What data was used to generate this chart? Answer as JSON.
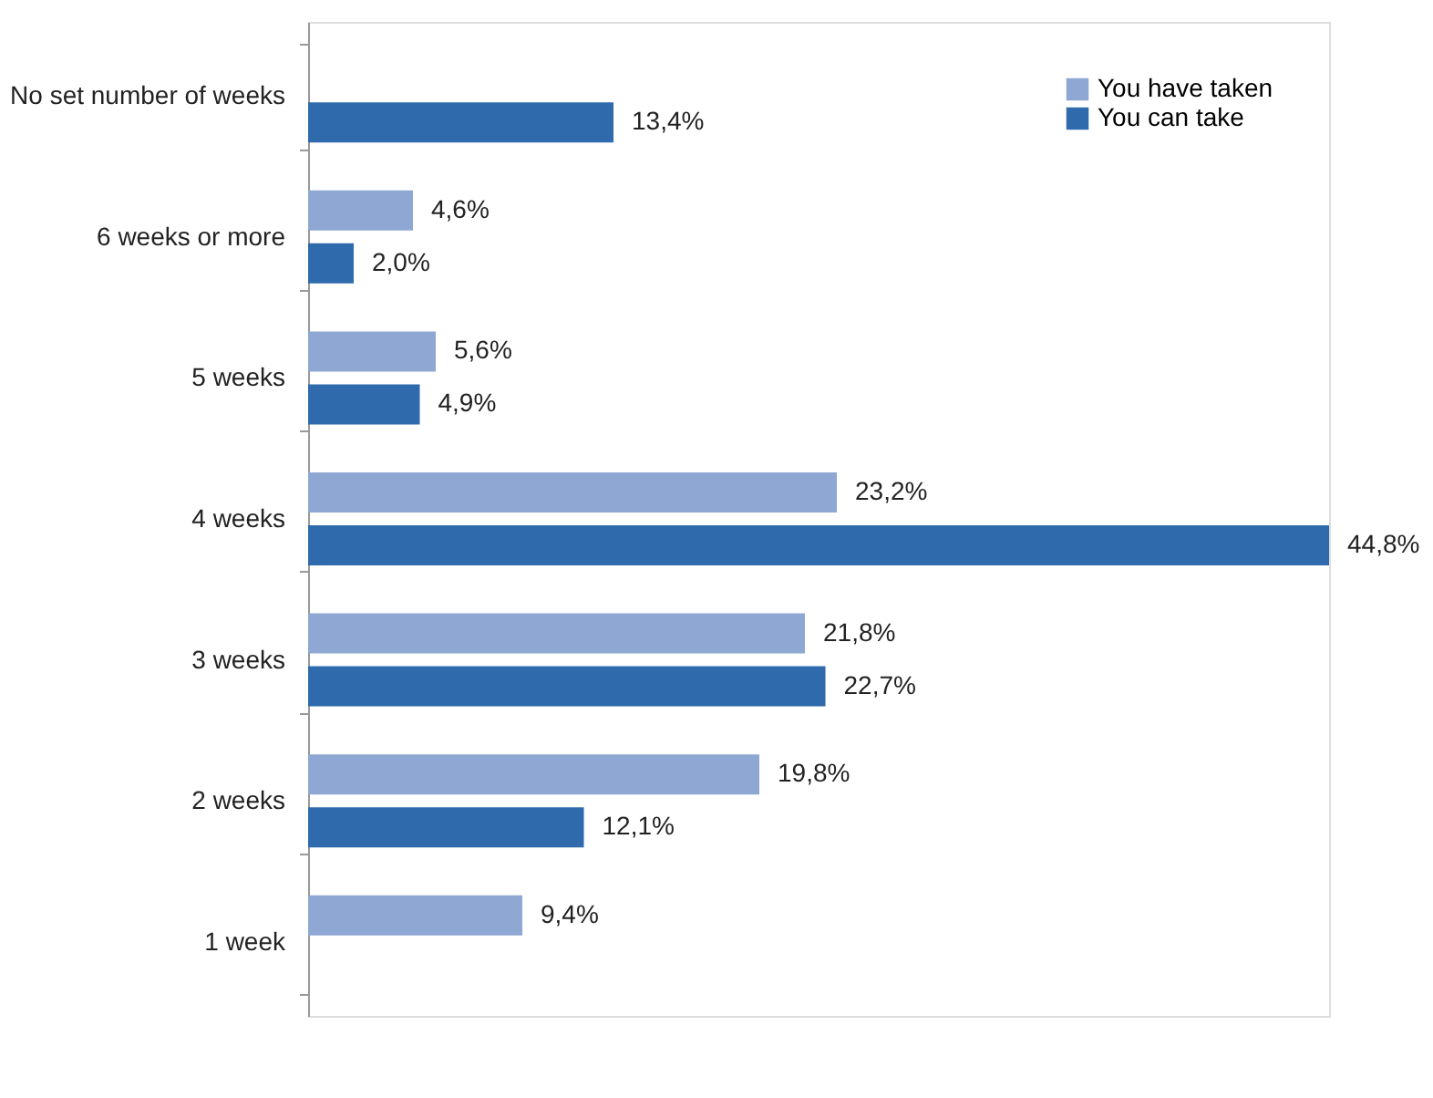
{
  "chart_data": {
    "type": "bar",
    "orientation": "horizontal",
    "categories": [
      "No set number of weeks",
      "6 weeks or more",
      "5 weeks",
      "4 weeks",
      "3 weeks",
      "2 weeks",
      "1 week"
    ],
    "series": [
      {
        "name": "You have taken",
        "color": "#8ea7d3",
        "values": [
          null,
          4.6,
          5.6,
          23.2,
          21.8,
          19.8,
          9.4
        ],
        "value_labels": [
          null,
          "4,6%",
          "5,6%",
          "23,2%",
          "21,8%",
          "19,8%",
          "9,4%"
        ]
      },
      {
        "name": "You can take",
        "color": "#2f6aad",
        "values": [
          13.4,
          2.0,
          4.9,
          44.8,
          22.7,
          12.1,
          null
        ],
        "value_labels": [
          "13,4%",
          "2,0%",
          "4,9%",
          "44,8%",
          "22,7%",
          "12,1%",
          null
        ]
      }
    ],
    "legend": "top right",
    "grid": false
  }
}
